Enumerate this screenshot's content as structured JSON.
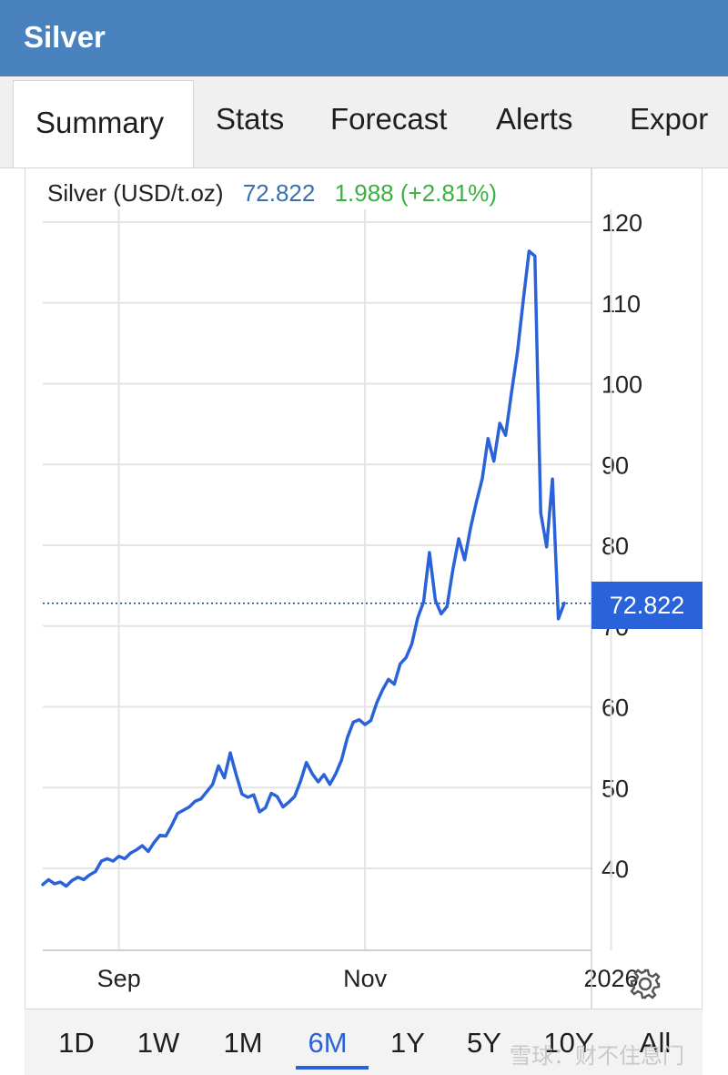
{
  "app": {
    "title": "Silver"
  },
  "tabs": [
    {
      "label": "Summary",
      "active": true
    },
    {
      "label": "Stats"
    },
    {
      "label": "Forecast"
    },
    {
      "label": "Alerts"
    },
    {
      "label": "Expor"
    }
  ],
  "quote": {
    "name": "Silver (USD/t.oz)",
    "price": "72.822",
    "change": "1.988 (+2.81%)",
    "price_color": "#3a6fb0",
    "change_color": "#3cb043"
  },
  "price_tag": "72.822",
  "settings_icon": "gear-icon",
  "ranges": [
    {
      "label": "1D"
    },
    {
      "label": "1W"
    },
    {
      "label": "1M"
    },
    {
      "label": "6M",
      "active": true
    },
    {
      "label": "1Y"
    },
    {
      "label": "5Y"
    },
    {
      "label": "10Y"
    },
    {
      "label": "All"
    }
  ],
  "watermark": "雪球：财不住息门",
  "colors": {
    "header": "#4a82bf",
    "line": "#2962d9",
    "accent": "#2962d9"
  },
  "chart_data": {
    "type": "line",
    "title": "",
    "xlabel": "",
    "ylabel": "",
    "x_ticks": [
      "Sep",
      "Nov",
      "2026"
    ],
    "x_tick_index": [
      13,
      55,
      97
    ],
    "y_ticks": [
      40,
      50,
      60,
      70,
      80,
      90,
      100,
      110,
      120
    ],
    "ylim": [
      31,
      121
    ],
    "grid": true,
    "current_value": 72.822,
    "series": [
      {
        "values": [
          38.0,
          38.6,
          38.1,
          38.3,
          37.8,
          38.5,
          38.9,
          38.6,
          39.2,
          39.6,
          40.9,
          41.2,
          40.9,
          41.5,
          41.2,
          41.9,
          42.3,
          42.8,
          42.1,
          43.2,
          44.1,
          44.0,
          45.3,
          46.8,
          47.2,
          47.6,
          48.3,
          48.6,
          49.5,
          50.4,
          52.7,
          51.2,
          54.3,
          51.6,
          49.2,
          48.8,
          49.1,
          47.0,
          47.5,
          49.3,
          48.9,
          47.6,
          48.2,
          48.9,
          50.8,
          53.1,
          51.7,
          50.7,
          51.6,
          50.4,
          51.7,
          53.4,
          56.2,
          58.1,
          58.4,
          57.8,
          58.3,
          60.5,
          62.1,
          63.4,
          62.8,
          65.3,
          66.1,
          67.8,
          71.0,
          73.0,
          79.1,
          73.2,
          71.5,
          72.4,
          77.0,
          80.8,
          78.2,
          82.1,
          85.3,
          88.2,
          93.2,
          90.4,
          95.1,
          93.6,
          98.9,
          103.8,
          110.2,
          116.4,
          115.8,
          84.0,
          79.8,
          88.2,
          70.9,
          72.822
        ]
      }
    ]
  }
}
